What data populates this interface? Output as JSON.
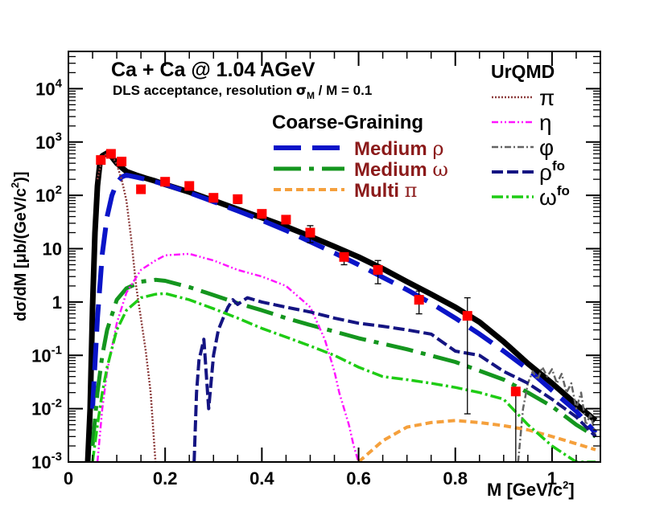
{
  "chart_data": {
    "type": "line",
    "title": "Ca + Ca @ 1.04 AGeV",
    "subtitle": "DLS acceptance, resolution σ_M / M = 0.1",
    "xlabel": "M  [GeV/c²]",
    "ylabel": "dσ/dM  [μb/(GeV/c²)]",
    "xlim": [
      0,
      1.1
    ],
    "ylim": [
      0.001,
      50000
    ],
    "y_scale": "log",
    "x_ticks": [
      {
        "value": 0,
        "label": "0"
      },
      {
        "value": 0.2,
        "label": "0.2"
      },
      {
        "value": 0.4,
        "label": "0.4"
      },
      {
        "value": 0.6,
        "label": "0.6"
      },
      {
        "value": 0.8,
        "label": "0.8"
      },
      {
        "value": 1.0,
        "label": "1"
      }
    ],
    "y_ticks": [
      {
        "value": 0.001,
        "base": "10",
        "exp": "-3"
      },
      {
        "value": 0.01,
        "base": "10",
        "exp": "-2"
      },
      {
        "value": 0.1,
        "base": "10",
        "exp": "-1"
      },
      {
        "value": 1,
        "base": "1",
        "exp": ""
      },
      {
        "value": 10,
        "base": "10",
        "exp": ""
      },
      {
        "value": 100,
        "base": "10",
        "exp": "2"
      },
      {
        "value": 1000,
        "base": "10",
        "exp": "3"
      },
      {
        "value": 10000,
        "base": "10",
        "exp": "4"
      }
    ],
    "legend_cg_title": "Coarse-Graining",
    "legend_urqmd_title": "UrQMD",
    "series": [
      {
        "name": "Total",
        "legend": false,
        "color": "#000000",
        "dash": "",
        "width": 7,
        "x": [
          0.04,
          0.045,
          0.05,
          0.055,
          0.06,
          0.065,
          0.07,
          0.08,
          0.09,
          0.1,
          0.12,
          0.14,
          0.16,
          0.18,
          0.2,
          0.25,
          0.3,
          0.35,
          0.4,
          0.45,
          0.5,
          0.55,
          0.6,
          0.65,
          0.7,
          0.75,
          0.8,
          0.85,
          0.9,
          0.95,
          1.0,
          1.05,
          1.09
        ],
        "y": [
          0.001,
          0.01,
          0.8,
          20,
          150,
          400,
          550,
          620,
          520,
          400,
          280,
          240,
          210,
          185,
          160,
          115,
          80,
          55,
          38,
          26,
          17,
          11,
          7,
          4.2,
          2.4,
          1.4,
          0.8,
          0.42,
          0.18,
          0.07,
          0.03,
          0.012,
          0.006
        ]
      },
      {
        "name": "Medium ρ",
        "legend": "cg",
        "label": "Medium",
        "symbol": "ρ",
        "color": "#0a14c8",
        "dash": "34,14",
        "width": 6,
        "x": [
          0.05,
          0.06,
          0.07,
          0.08,
          0.09,
          0.1,
          0.11,
          0.12,
          0.14,
          0.17,
          0.2,
          0.25,
          0.3,
          0.35,
          0.4,
          0.45,
          0.5,
          0.55,
          0.6,
          0.65,
          0.7,
          0.75,
          0.8,
          0.85,
          0.9,
          0.95,
          1.0,
          1.05,
          1.09
        ],
        "y": [
          0.01,
          0.5,
          8,
          40,
          100,
          170,
          220,
          240,
          220,
          190,
          160,
          112,
          76,
          51,
          34,
          22,
          13.5,
          8.3,
          5,
          2.9,
          1.7,
          0.95,
          0.5,
          0.25,
          0.12,
          0.055,
          0.022,
          0.009,
          0.0035
        ]
      },
      {
        "name": "Medium ω",
        "legend": "cg",
        "label": "Medium",
        "symbol": "ω",
        "color": "#14961e",
        "dash": "34,10,6,10",
        "width": 5,
        "x": [
          0.05,
          0.06,
          0.07,
          0.08,
          0.1,
          0.12,
          0.15,
          0.18,
          0.2,
          0.25,
          0.3,
          0.35,
          0.4,
          0.45,
          0.5,
          0.55,
          0.6,
          0.7,
          0.8,
          0.9,
          0.95,
          1.0,
          1.05,
          1.09
        ],
        "y": [
          0.002,
          0.02,
          0.1,
          0.3,
          1.1,
          1.8,
          2.4,
          2.6,
          2.5,
          1.9,
          1.35,
          0.95,
          0.7,
          0.5,
          0.37,
          0.28,
          0.21,
          0.13,
          0.075,
          0.035,
          0.02,
          0.011,
          0.005,
          0.003
        ]
      },
      {
        "name": "Multi π",
        "legend": "cg",
        "label": "Multi",
        "symbol": "π",
        "color": "#f5a03c",
        "dash": "9,5",
        "width": 4,
        "x": [
          0.6,
          0.65,
          0.7,
          0.75,
          0.8,
          0.85,
          0.9,
          0.95,
          1.0,
          1.05,
          1.09
        ],
        "y": [
          0.001,
          0.0025,
          0.0045,
          0.0055,
          0.006,
          0.0055,
          0.0048,
          0.004,
          0.003,
          0.0022,
          0.0017
        ]
      },
      {
        "name": "π",
        "legend": "urqmd",
        "symbol": "π",
        "sub": "",
        "color": "#8c3c3c",
        "dash": "2,2",
        "width": 2.5,
        "x": [
          0.06,
          0.07,
          0.08,
          0.09,
          0.1,
          0.11,
          0.12,
          0.13,
          0.14,
          0.15,
          0.16,
          0.17,
          0.18
        ],
        "y": [
          200,
          500,
          620,
          560,
          380,
          200,
          80,
          15,
          2,
          0.5,
          0.12,
          0.02,
          0.001
        ]
      },
      {
        "name": "η",
        "legend": "urqmd",
        "symbol": "η",
        "sub": "",
        "color": "#ff14ff",
        "dash": "8,3,2,3,2,3",
        "width": 2.5,
        "x": [
          0.06,
          0.07,
          0.08,
          0.1,
          0.12,
          0.15,
          0.18,
          0.2,
          0.25,
          0.3,
          0.35,
          0.4,
          0.45,
          0.5,
          0.53,
          0.55,
          0.56,
          0.57,
          0.58,
          0.59,
          0.6
        ],
        "y": [
          0.001,
          0.01,
          0.05,
          0.4,
          1.5,
          4,
          6,
          7.5,
          8,
          6,
          4,
          3,
          2,
          0.8,
          0.2,
          0.05,
          0.02,
          0.01,
          0.005,
          0.002,
          0.001
        ]
      },
      {
        "name": "φ",
        "legend": "urqmd",
        "symbol": "φ",
        "sub": "",
        "color": "#646464",
        "dash": "8,3,2,3",
        "width": 2.5,
        "x": [
          0.93,
          0.94,
          0.95,
          0.96,
          0.97,
          0.98,
          0.99,
          1.0,
          1.01,
          1.02,
          1.03,
          1.04,
          1.05,
          1.06,
          1.07,
          1.08,
          1.09
        ],
        "y": [
          0.001,
          0.01,
          0.03,
          0.05,
          0.035,
          0.06,
          0.04,
          0.055,
          0.03,
          0.045,
          0.02,
          0.03,
          0.01,
          0.02,
          0.005,
          0.008,
          0.003
        ]
      },
      {
        "name": "ρ_fo",
        "legend": "urqmd",
        "symbol": "ρ",
        "sub": "fo",
        "color": "#141482",
        "dash": "14,5",
        "width": 4,
        "x": [
          0.26,
          0.265,
          0.27,
          0.28,
          0.29,
          0.3,
          0.31,
          0.32,
          0.33,
          0.34,
          0.35,
          0.37,
          0.4,
          0.45,
          0.5,
          0.55,
          0.6,
          0.65,
          0.7,
          0.75,
          0.8,
          0.85,
          0.9,
          0.95,
          1.0,
          1.05,
          1.09
        ],
        "y": [
          0.001,
          0.02,
          0.08,
          0.2,
          0.01,
          0.1,
          0.3,
          0.5,
          0.8,
          1.1,
          0.9,
          1.2,
          1.0,
          0.8,
          0.65,
          0.5,
          0.4,
          0.35,
          0.3,
          0.25,
          0.12,
          0.1,
          0.05,
          0.03,
          0.015,
          0.007,
          0.003
        ]
      },
      {
        "name": "ω_fo",
        "legend": "urqmd",
        "symbol": "ω",
        "sub": "fo",
        "color": "#1ecc14",
        "dash": "14,4,3,4",
        "width": 3.5,
        "x": [
          0.05,
          0.06,
          0.07,
          0.08,
          0.1,
          0.12,
          0.15,
          0.18,
          0.2,
          0.25,
          0.3,
          0.35,
          0.4,
          0.45,
          0.5,
          0.55,
          0.6,
          0.65,
          0.7,
          0.75,
          0.8,
          0.85,
          0.9,
          0.95,
          1.0,
          1.05,
          1.09
        ],
        "y": [
          0.001,
          0.005,
          0.02,
          0.06,
          0.3,
          0.7,
          1.2,
          1.4,
          1.45,
          1.1,
          0.75,
          0.5,
          0.32,
          0.22,
          0.15,
          0.1,
          0.06,
          0.04,
          0.035,
          0.03,
          0.025,
          0.02,
          0.015,
          0.005,
          0.002,
          0.001,
          0.001
        ]
      }
    ],
    "data_points": {
      "name": "DLS data",
      "color": "#ff0000",
      "x": [
        0.067,
        0.088,
        0.11,
        0.15,
        0.2,
        0.25,
        0.3,
        0.35,
        0.4,
        0.45,
        0.5,
        0.57,
        0.64,
        0.725,
        0.825,
        0.925
      ],
      "y": [
        460,
        600,
        430,
        130,
        180,
        150,
        90,
        85,
        45,
        35,
        20,
        7,
        4,
        1.1,
        0.55,
        0.021
      ],
      "y_err_low": [
        400,
        530,
        380,
        110,
        160,
        130,
        75,
        70,
        37,
        28,
        13,
        5,
        2.2,
        0.6,
        0.008,
        0.001
      ],
      "y_err_high": [
        530,
        680,
        480,
        150,
        200,
        170,
        105,
        100,
        53,
        42,
        27,
        9,
        6,
        1.6,
        1.2,
        0.025
      ]
    }
  }
}
